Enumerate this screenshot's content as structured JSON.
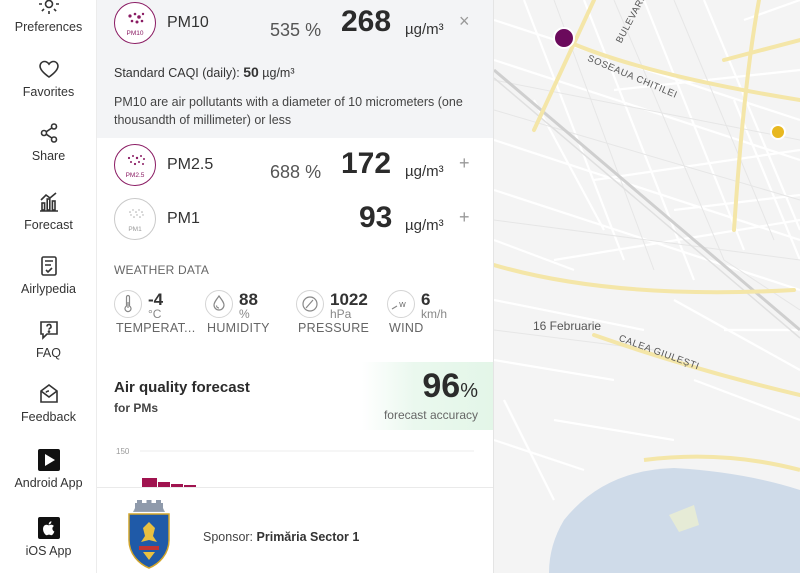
{
  "nav": {
    "items": [
      {
        "label": "Preferences",
        "icon": "gear-icon"
      },
      {
        "label": "Favorites",
        "icon": "heart-icon"
      },
      {
        "label": "Share",
        "icon": "share-icon"
      },
      {
        "label": "Forecast",
        "icon": "bar-chart-icon"
      },
      {
        "label": "Airlypedia",
        "icon": "book-icon"
      },
      {
        "label": "FAQ",
        "icon": "question-icon"
      },
      {
        "label": "Feedback",
        "icon": "feedback-icon"
      },
      {
        "label": "Android App",
        "icon": "google-play-icon"
      },
      {
        "label": "iOS App",
        "icon": "apple-icon"
      }
    ]
  },
  "pollutants": {
    "pm10": {
      "name": "PM10",
      "badge": "PM10",
      "percent": "535",
      "percent_sign": "%",
      "value": "268",
      "unit": "µg/m³",
      "action": "×"
    },
    "pm25": {
      "name": "PM2.5",
      "badge": "PM2.5",
      "percent": "688",
      "percent_sign": "%",
      "value": "172",
      "unit": "µg/m³",
      "action": "+"
    },
    "pm1": {
      "name": "PM1",
      "badge": "PM1",
      "value": "93",
      "unit": "µg/m³",
      "action": "+"
    }
  },
  "caqi": {
    "label": "Standard CAQI (daily):",
    "value": "50",
    "unit": "µg/m³"
  },
  "pm10_description": "PM10 are air pollutants with a diameter of 10 micrometers (one thousandth of millimeter) or less",
  "weather": {
    "title": "WEATHER DATA",
    "temperature": {
      "value": "-4",
      "unit": "°C",
      "label": "TEMPERAT...",
      "icon": "thermometer-icon"
    },
    "humidity": {
      "value": "88",
      "unit": "%",
      "label": "HUMIDITY",
      "icon": "droplet-icon"
    },
    "pressure": {
      "value": "1022",
      "unit": "hPa",
      "label": "PRESSURE",
      "icon": "gauge-icon"
    },
    "wind": {
      "value": "6",
      "unit": "km/h",
      "label": "WIND",
      "icon": "wind-compass-icon",
      "direction_letter": "W"
    }
  },
  "forecast": {
    "title": "Air quality forecast",
    "subtitle": "for PMs",
    "accuracy_value": "96",
    "accuracy_unit": "%",
    "accuracy_label": "forecast accuracy",
    "axis_tick": "150",
    "bar_color": "#a0134f"
  },
  "sponsor": {
    "label": "Sponsor:",
    "name": "Primăria Sector 1",
    "logo": "sector-1-crest-icon"
  },
  "map": {
    "labels": {
      "bulevard": "BULEVARD",
      "soseaua": "SOSEAUA CHITILEI",
      "feb16": "16 Februarie",
      "calea": "CALEA GIULEȘTI"
    },
    "markers": [
      {
        "name": "marker-purple",
        "color": "#6b0a5c"
      },
      {
        "name": "marker-yellow",
        "color": "#e8b820"
      }
    ]
  }
}
